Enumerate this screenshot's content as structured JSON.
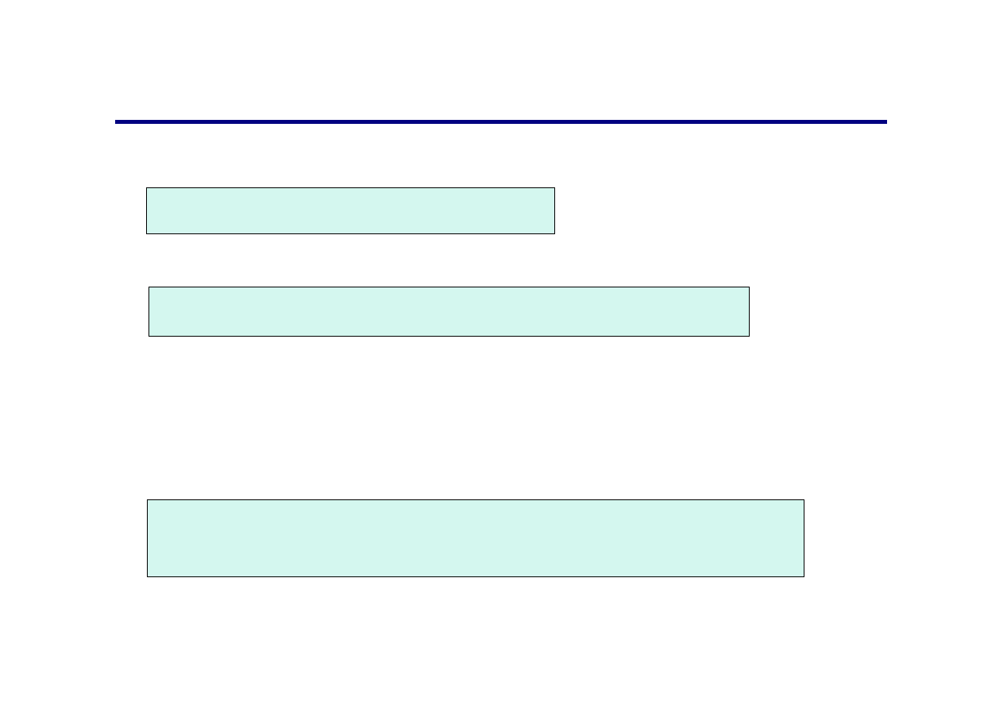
{
  "colors": {
    "rule": "#000080",
    "box_fill": "#d4f7ef",
    "box_border": "#000000"
  },
  "boxes": [
    {
      "text": ""
    },
    {
      "text": ""
    },
    {
      "text": ""
    }
  ]
}
